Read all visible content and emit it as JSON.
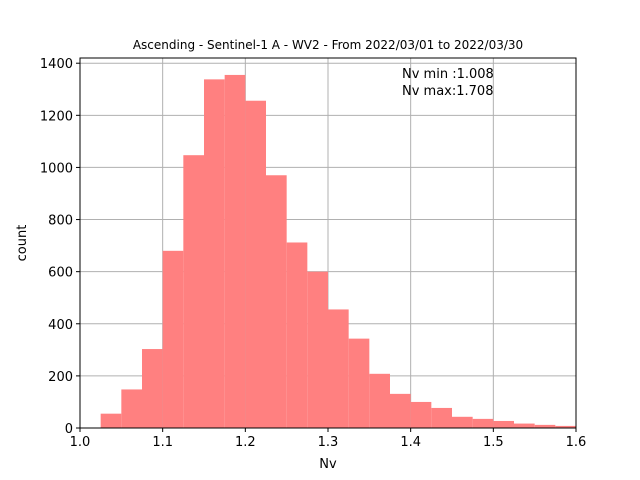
{
  "chart_data": {
    "type": "bar",
    "title": "Ascending - Sentinel-1 A - WV2 - From 2022/03/01 to 2022/03/30",
    "xlabel": "Nv",
    "ylabel": "count",
    "xlim": [
      1.0,
      1.6
    ],
    "ylim": [
      0,
      1420
    ],
    "xticks": [
      "1.0",
      "1.1",
      "1.2",
      "1.3",
      "1.4",
      "1.5",
      "1.6"
    ],
    "xtick_values": [
      1.0,
      1.1,
      1.2,
      1.3,
      1.4,
      1.5,
      1.6
    ],
    "yticks": [
      "0",
      "200",
      "400",
      "600",
      "800",
      "1000",
      "1200",
      "1400"
    ],
    "ytick_values": [
      0,
      200,
      400,
      600,
      800,
      1000,
      1200,
      1400
    ],
    "grid": true,
    "bar_color": "#ff8080",
    "bins": [
      {
        "x0": 1.025,
        "x1": 1.05,
        "count": 55
      },
      {
        "x0": 1.05,
        "x1": 1.075,
        "count": 148
      },
      {
        "x0": 1.075,
        "x1": 1.1,
        "count": 303
      },
      {
        "x0": 1.1,
        "x1": 1.125,
        "count": 680
      },
      {
        "x0": 1.125,
        "x1": 1.15,
        "count": 1047
      },
      {
        "x0": 1.15,
        "x1": 1.175,
        "count": 1338
      },
      {
        "x0": 1.175,
        "x1": 1.2,
        "count": 1355
      },
      {
        "x0": 1.2,
        "x1": 1.225,
        "count": 1256
      },
      {
        "x0": 1.225,
        "x1": 1.25,
        "count": 970
      },
      {
        "x0": 1.25,
        "x1": 1.275,
        "count": 712
      },
      {
        "x0": 1.275,
        "x1": 1.3,
        "count": 600
      },
      {
        "x0": 1.3,
        "x1": 1.325,
        "count": 455
      },
      {
        "x0": 1.325,
        "x1": 1.35,
        "count": 343
      },
      {
        "x0": 1.35,
        "x1": 1.375,
        "count": 208
      },
      {
        "x0": 1.375,
        "x1": 1.4,
        "count": 131
      },
      {
        "x0": 1.4,
        "x1": 1.425,
        "count": 100
      },
      {
        "x0": 1.425,
        "x1": 1.45,
        "count": 77
      },
      {
        "x0": 1.45,
        "x1": 1.475,
        "count": 43
      },
      {
        "x0": 1.475,
        "x1": 1.5,
        "count": 35
      },
      {
        "x0": 1.5,
        "x1": 1.525,
        "count": 27
      },
      {
        "x0": 1.525,
        "x1": 1.55,
        "count": 17
      },
      {
        "x0": 1.55,
        "x1": 1.575,
        "count": 12
      },
      {
        "x0": 1.575,
        "x1": 1.6,
        "count": 8
      }
    ],
    "annotations": [
      "Nv min :1.008",
      "Nv max:1.708"
    ]
  }
}
